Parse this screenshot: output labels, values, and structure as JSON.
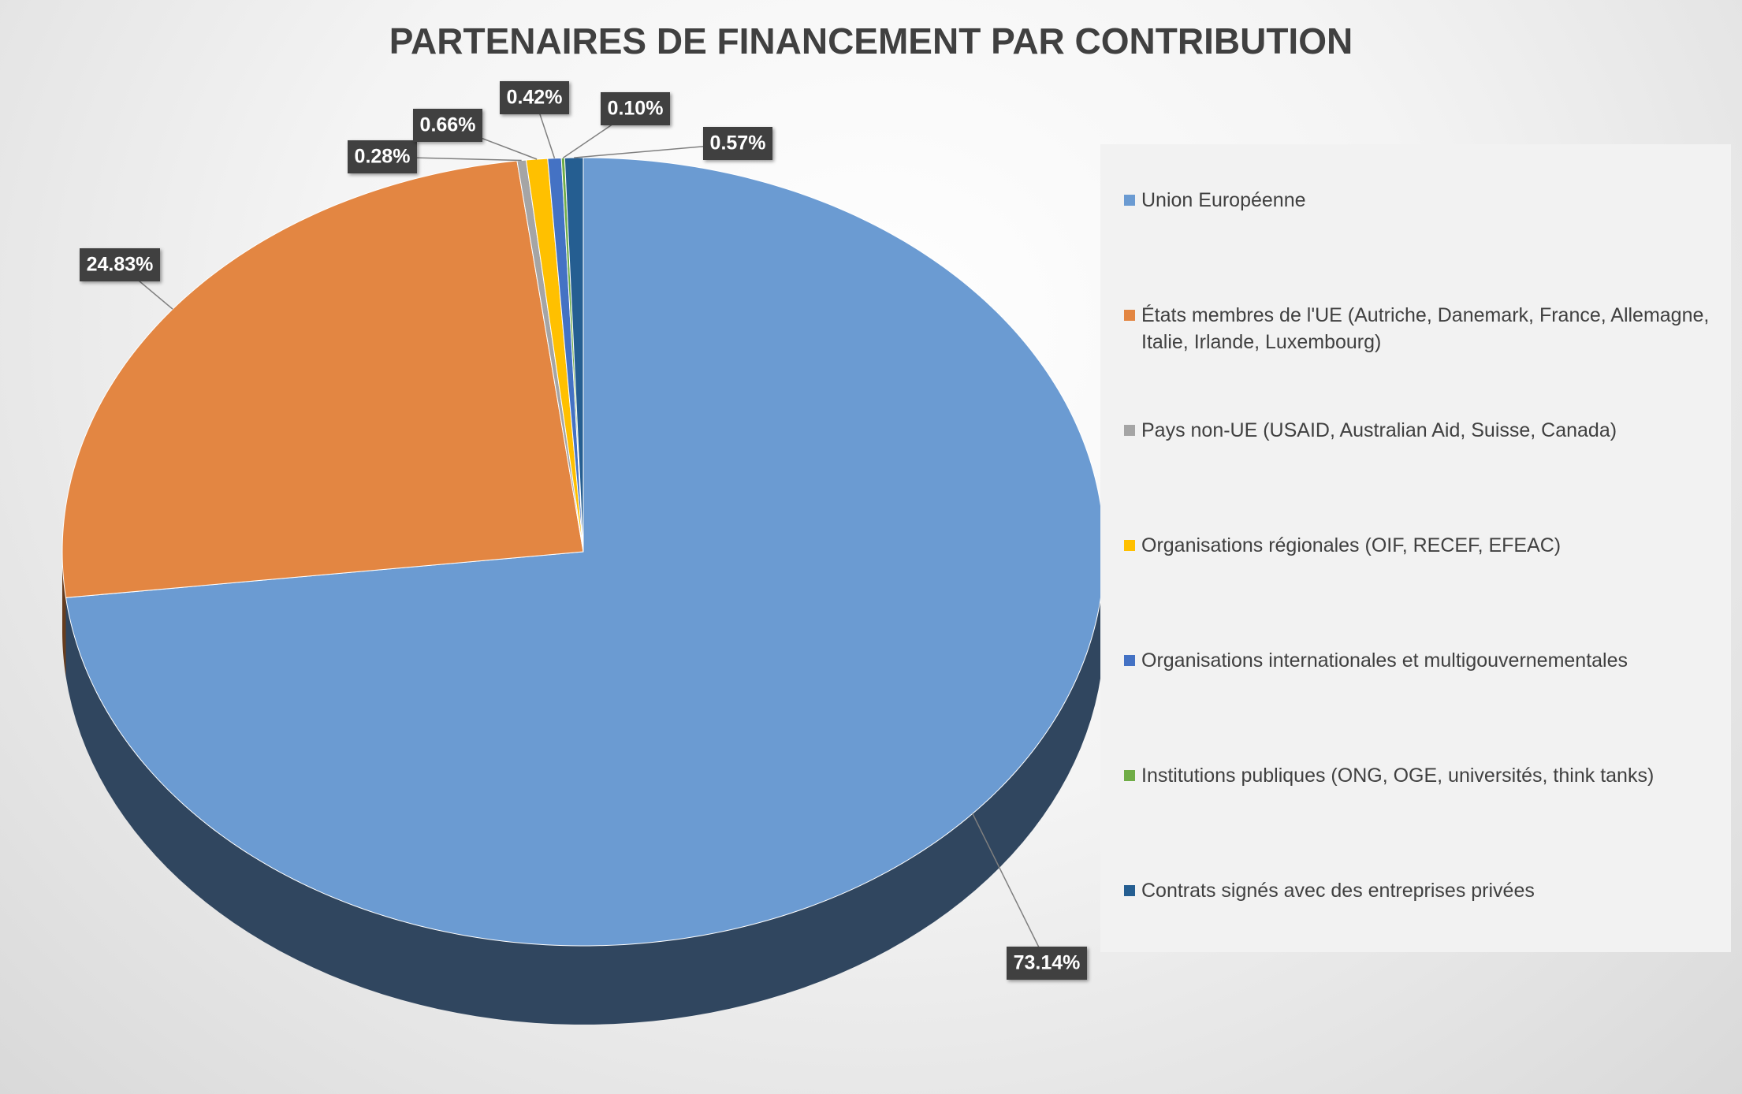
{
  "chart_data": {
    "type": "pie",
    "title": "PARTENAIRES DE FINANCEMENT PAR CONTRIBUTION",
    "categories": [
      "Union Européenne",
      "États membres de l'UE (Autriche, Danemark, France, Allemagne, Italie, Irlande, Luxembourg)",
      "Pays non-UE (USAID, Australian Aid, Suisse, Canada)",
      "Organisations régionales (OIF, RECEF, EFEAC)",
      "Organisations internationales et multigouvernementales",
      "Institutions publiques (ONG, OGE, universités, think tanks)",
      "Contrats signés avec des entreprises privées"
    ],
    "values": [
      73.14,
      24.83,
      0.28,
      0.66,
      0.42,
      0.1,
      0.57
    ],
    "value_labels": [
      "73.14%",
      "24.83%",
      "0.28%",
      "0.66%",
      "0.42%",
      "0.10%",
      "0.57%"
    ],
    "colors": [
      "#6b9bd2",
      "#e38642",
      "#a5a5a5",
      "#ffc000",
      "#4472c4",
      "#70ad47",
      "#255e91"
    ],
    "legend": "right"
  }
}
